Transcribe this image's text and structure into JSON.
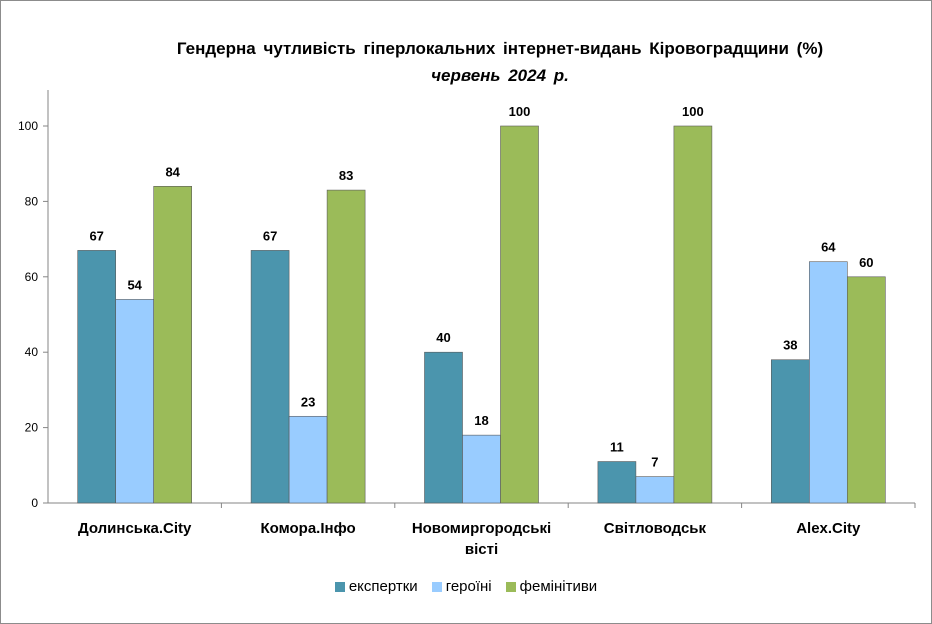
{
  "chart_data": {
    "type": "bar",
    "title": "Гендерна чутливість гіперлокальних інтернет-видань Кіровоградщини (%)",
    "subtitle": "червень 2024 р.",
    "categories": [
      [
        "Долинська.City"
      ],
      [
        "Комора.Інфо"
      ],
      [
        "Новомиргородські",
        "вісті"
      ],
      [
        "Світловодськ"
      ],
      [
        "Alex.City"
      ]
    ],
    "series": [
      {
        "name": "експертки",
        "color": "#4b95ad",
        "values": [
          67,
          67,
          40,
          11,
          38
        ]
      },
      {
        "name": "героїні",
        "color": "#99ccff",
        "values": [
          54,
          23,
          18,
          7,
          64
        ]
      },
      {
        "name": "фемінітиви",
        "color": "#9bbb59",
        "values": [
          84,
          83,
          100,
          100,
          60
        ]
      }
    ],
    "yticks": [
      0,
      20,
      40,
      60,
      80,
      100
    ],
    "ylim": [
      0,
      100
    ],
    "grid": false,
    "legend_position": "bottom"
  }
}
